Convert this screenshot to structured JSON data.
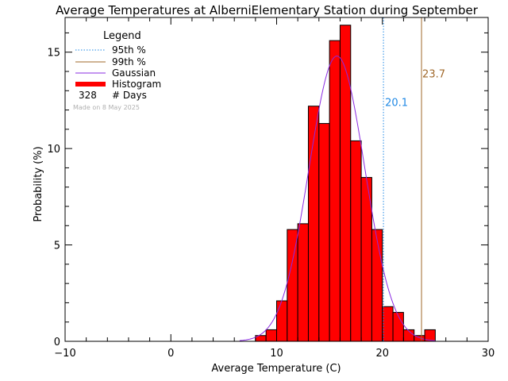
{
  "chart_data": {
    "type": "bar",
    "title": "Average Temperatures at AlberniElementary Station during September",
    "xlabel": "Average Temperature (C)",
    "ylabel": "Probability  (%)",
    "xlim": [
      -10,
      30
    ],
    "ylim": [
      0,
      16.8
    ],
    "xticks": [
      -10,
      0,
      10,
      20,
      30
    ],
    "yticks": [
      0,
      5,
      10,
      15
    ],
    "grid": false,
    "bin_width": 1,
    "bins": [
      {
        "x0": 8,
        "x1": 9,
        "y": 0.3
      },
      {
        "x0": 9,
        "x1": 10,
        "y": 0.6
      },
      {
        "x0": 10,
        "x1": 11,
        "y": 2.1
      },
      {
        "x0": 11,
        "x1": 12,
        "y": 5.8
      },
      {
        "x0": 12,
        "x1": 13,
        "y": 6.1
      },
      {
        "x0": 13,
        "x1": 14,
        "y": 12.2
      },
      {
        "x0": 14,
        "x1": 15,
        "y": 11.3
      },
      {
        "x0": 15,
        "x1": 16,
        "y": 15.6
      },
      {
        "x0": 16,
        "x1": 17,
        "y": 16.4
      },
      {
        "x0": 17,
        "x1": 18,
        "y": 10.4
      },
      {
        "x0": 18,
        "x1": 19,
        "y": 8.5
      },
      {
        "x0": 19,
        "x1": 20,
        "y": 5.8
      },
      {
        "x0": 20,
        "x1": 21,
        "y": 1.8
      },
      {
        "x0": 21,
        "x1": 22,
        "y": 1.5
      },
      {
        "x0": 22,
        "x1": 23,
        "y": 0.6
      },
      {
        "x0": 23,
        "x1": 24,
        "y": 0.3
      },
      {
        "x0": 24,
        "x1": 25,
        "y": 0.6
      }
    ],
    "gaussian": {
      "mean": 15.7,
      "sigma": 2.64,
      "peak": 14.8
    },
    "percentile_95": {
      "label": "95th %",
      "value": 20.1,
      "value_label": "20.1"
    },
    "percentile_99": {
      "label": "99th %",
      "value": 23.7,
      "value_label": "23.7"
    },
    "legend": {
      "title": "Legend",
      "position": "top-left",
      "entries": [
        {
          "label": "95th %",
          "style": "dotted",
          "color": "#1e88e5"
        },
        {
          "label": "99th %",
          "style": "solid",
          "color": "#a0682a"
        },
        {
          "label": "Gaussian",
          "style": "solid",
          "color": "#8a2be2"
        },
        {
          "label": "Histogram",
          "style": "thick",
          "color": "#ff0000"
        }
      ],
      "days_count": "328",
      "days_label": "# Days"
    },
    "watermark": "Made on 8 May 2025",
    "colors": {
      "histogram_fill": "#ff0000",
      "histogram_edge": "#000000",
      "gaussian": "#8a2be2",
      "p95": "#1e88e5",
      "p99": "#a0682a",
      "axes": "#000000",
      "watermark": "#b0b0b0"
    }
  }
}
